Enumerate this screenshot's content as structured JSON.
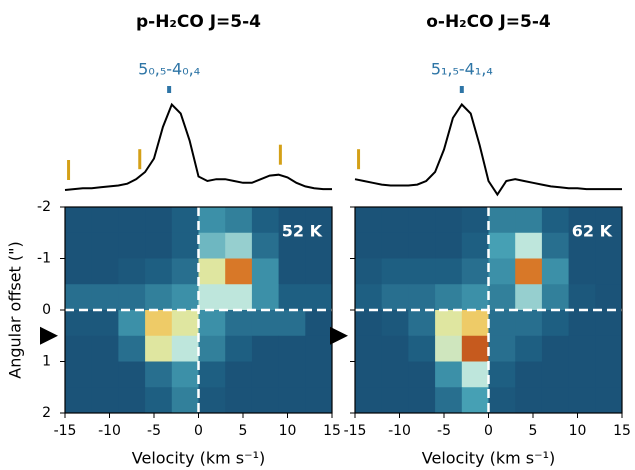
{
  "chart_data": [
    {
      "type": "heatmap",
      "title": "p-H₂CO J=5-4",
      "annotation": "52 K",
      "transition": {
        "label": "5₀,₅-4₀,₄",
        "x": -3.3,
        "color": "#2e75a6"
      },
      "line_markers": {
        "x": [
          -14.6,
          -6.6,
          9.2
        ],
        "color": "#d4a017"
      },
      "spectrum": {
        "x": [
          -15,
          -14,
          -13,
          -12,
          -11,
          -10,
          -9,
          -8,
          -7,
          -6,
          -5,
          -4,
          -3,
          -2,
          -1,
          0,
          1,
          2,
          3,
          4,
          5,
          6,
          7,
          8,
          9,
          10,
          11,
          12,
          13,
          14,
          15
        ],
        "values": [
          0,
          0.01,
          0.02,
          0.02,
          0.03,
          0.04,
          0.05,
          0.07,
          0.12,
          0.2,
          0.35,
          0.7,
          0.95,
          0.85,
          0.55,
          0.15,
          0.1,
          0.12,
          0.12,
          0.1,
          0.08,
          0.08,
          0.12,
          0.16,
          0.17,
          0.14,
          0.08,
          0.04,
          0.02,
          0.01,
          0.01
        ],
        "ylim": [
          0,
          1
        ],
        "color": "#000000"
      },
      "xbins": [
        -15,
        -12,
        -9,
        -6,
        -3,
        0,
        3,
        6,
        9,
        12,
        15
      ],
      "ybins": [
        -2,
        -1.5,
        -1,
        -0.5,
        0,
        0.5,
        1,
        1.5,
        2
      ],
      "heatmap": [
        [
          0.1,
          0.1,
          0.1,
          0.1,
          0.15,
          0.3,
          0.25,
          0.15,
          0.1,
          0.1
        ],
        [
          0.1,
          0.1,
          0.1,
          0.1,
          0.15,
          0.4,
          0.45,
          0.2,
          0.1,
          0.1
        ],
        [
          0.1,
          0.1,
          0.12,
          0.15,
          0.2,
          0.6,
          0.85,
          0.3,
          0.1,
          0.1
        ],
        [
          0.2,
          0.2,
          0.2,
          0.25,
          0.3,
          0.5,
          0.5,
          0.3,
          0.15,
          0.15
        ],
        [
          0.12,
          0.12,
          0.3,
          0.7,
          0.6,
          0.3,
          0.2,
          0.2,
          0.2,
          0.1
        ],
        [
          0.1,
          0.1,
          0.2,
          0.6,
          0.5,
          0.25,
          0.15,
          0.1,
          0.1,
          0.1
        ],
        [
          0.1,
          0.1,
          0.1,
          0.2,
          0.3,
          0.15,
          0.1,
          0.1,
          0.1,
          0.1
        ],
        [
          0.1,
          0.1,
          0.1,
          0.15,
          0.25,
          0.12,
          0.1,
          0.1,
          0.1,
          0.1
        ]
      ],
      "xlim": [
        -15,
        15
      ],
      "ylim": [
        2,
        -2
      ],
      "xticks": [
        -15,
        -10,
        -5,
        0,
        5,
        10,
        15
      ],
      "yticks": [
        -2,
        -1,
        0,
        1,
        2
      ],
      "show_ytick_labels": true,
      "xlabel": "Velocity (km s⁻¹)",
      "ylabel": "Angular offset (\")",
      "reference_lines": {
        "x": 0,
        "y": 0
      },
      "marker_offset": 0.5
    },
    {
      "type": "heatmap",
      "title": "o-H₂CO J=5-4",
      "annotation": "62 K",
      "transition": {
        "label": "5₁,₅-4₁,₄",
        "x": -3,
        "color": "#2e75a6"
      },
      "line_markers": {
        "x": [
          -14.6
        ],
        "color": "#d4a017"
      },
      "spectrum": {
        "x": [
          -15,
          -14,
          -13,
          -12,
          -11,
          -10,
          -9,
          -8,
          -7,
          -6,
          -5,
          -4,
          -3,
          -2,
          -1,
          0,
          1,
          2,
          3,
          4,
          5,
          6,
          7,
          8,
          9,
          10,
          11,
          12,
          13,
          14,
          15
        ],
        "values": [
          0.12,
          0.1,
          0.08,
          0.06,
          0.05,
          0.05,
          0.05,
          0.06,
          0.1,
          0.2,
          0.45,
          0.8,
          0.95,
          0.85,
          0.5,
          0.1,
          -0.05,
          0.1,
          0.12,
          0.1,
          0.08,
          0.06,
          0.04,
          0.03,
          0.02,
          0.02,
          0.01,
          0.01,
          0.01,
          0.01,
          0.01
        ],
        "ylim": [
          0,
          1
        ],
        "color": "#000000"
      },
      "xbins": [
        -15,
        -12,
        -9,
        -6,
        -3,
        0,
        3,
        6,
        9,
        12,
        15
      ],
      "ybins": [
        -2,
        -1.5,
        -1,
        -0.5,
        0,
        0.5,
        1,
        1.5,
        2
      ],
      "heatmap": [
        [
          0.1,
          0.1,
          0.1,
          0.1,
          0.12,
          0.25,
          0.25,
          0.15,
          0.1,
          0.1
        ],
        [
          0.1,
          0.1,
          0.1,
          0.1,
          0.15,
          0.35,
          0.5,
          0.2,
          0.1,
          0.1
        ],
        [
          0.12,
          0.15,
          0.15,
          0.15,
          0.2,
          0.3,
          0.85,
          0.3,
          0.1,
          0.1
        ],
        [
          0.15,
          0.2,
          0.2,
          0.25,
          0.3,
          0.25,
          0.45,
          0.25,
          0.12,
          0.1
        ],
        [
          0.1,
          0.12,
          0.2,
          0.6,
          0.7,
          0.2,
          0.2,
          0.15,
          0.1,
          0.1
        ],
        [
          0.1,
          0.1,
          0.15,
          0.55,
          0.9,
          0.2,
          0.15,
          0.1,
          0.1,
          0.1
        ],
        [
          0.1,
          0.1,
          0.1,
          0.3,
          0.5,
          0.15,
          0.1,
          0.1,
          0.1,
          0.1
        ],
        [
          0.1,
          0.1,
          0.1,
          0.2,
          0.35,
          0.12,
          0.1,
          0.1,
          0.1,
          0.1
        ]
      ],
      "xlim": [
        -15,
        15
      ],
      "ylim": [
        2,
        -2
      ],
      "xticks": [
        -15,
        -10,
        -5,
        0,
        5,
        10,
        15
      ],
      "yticks": [
        -2,
        -1,
        0,
        1,
        2
      ],
      "show_ytick_labels": false,
      "xlabel": "Velocity (km s⁻¹)",
      "reference_lines": {
        "x": 0,
        "y": 0
      },
      "marker_offset": 0.5
    }
  ]
}
